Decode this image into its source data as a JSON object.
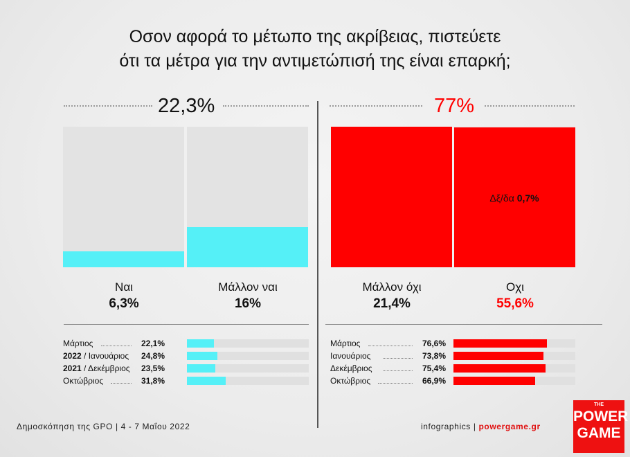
{
  "title_line1": "Οσον αφορά το μέτωπο της ακρίβειας, πιστεύετε",
  "title_line2": "ότι τα μέτρα για την αντιμετώπισή της είναι επαρκή;",
  "colors": {
    "cyan": "#55f0f7",
    "red": "#ff0000",
    "grey": "#e3e3e3"
  },
  "chart_data": [
    {
      "type": "bar",
      "group_totals": [
        {
          "label": "22,3%",
          "value": 22.3,
          "color": "#111111"
        },
        {
          "label": "77%",
          "value": 77,
          "color": "#ff0000"
        }
      ],
      "categories": [
        "Ναι",
        "Μάλλον ναι",
        "Μάλλον όχι",
        "Οχι"
      ],
      "values": [
        6.3,
        16,
        21.4,
        55.6
      ],
      "value_labels": [
        "6,3%",
        "16%",
        "21,4%",
        "55,6%"
      ],
      "value_colors": [
        "#111111",
        "#111111",
        "#111111",
        "#ff0000"
      ],
      "bar_colors": [
        "#55f0f7",
        "#55f0f7",
        "#ff0000",
        "#ff0000"
      ],
      "ylim": [
        0,
        100
      ],
      "annotation": {
        "prefix": "Δξ/δα",
        "value_label": "0,7%",
        "value": 0.7
      }
    },
    {
      "type": "bar",
      "series": [
        {
          "side": "yes",
          "color": "#55f0f7",
          "rows": [
            {
              "year": "",
              "month": "Μάρτιος",
              "value": 22.1,
              "label": "22,1%"
            },
            {
              "year": "2022",
              "month": "Ιανουάριος",
              "value": 24.8,
              "label": "24,8%"
            },
            {
              "year": "2021",
              "month": "Δεκέμβριος",
              "value": 23.5,
              "label": "23,5%"
            },
            {
              "year": "",
              "month": "Οκτώβριος",
              "value": 31.8,
              "label": "31,8%"
            }
          ]
        },
        {
          "side": "no",
          "color": "#ff0000",
          "rows": [
            {
              "year": "",
              "month": "Μάρτιος",
              "value": 76.6,
              "label": "76,6%"
            },
            {
              "year": "",
              "month": "Ιανουάριος",
              "value": 73.8,
              "label": "73,8%"
            },
            {
              "year": "",
              "month": "Δεκέμβριος",
              "value": 75.4,
              "label": "75,4%"
            },
            {
              "year": "",
              "month": "Οκτώβριος",
              "value": 66.9,
              "label": "66,9%"
            }
          ]
        }
      ],
      "xlim": [
        0,
        100
      ]
    }
  ],
  "footer": {
    "source": "Δημοσκόπηση της GPO | 4 - 7 Μαΐου 2022",
    "credit": "infographics | ",
    "url": "powergame.gr"
  },
  "logo": {
    "top": "THE",
    "line1": "POWER",
    "line2": "GAME"
  }
}
